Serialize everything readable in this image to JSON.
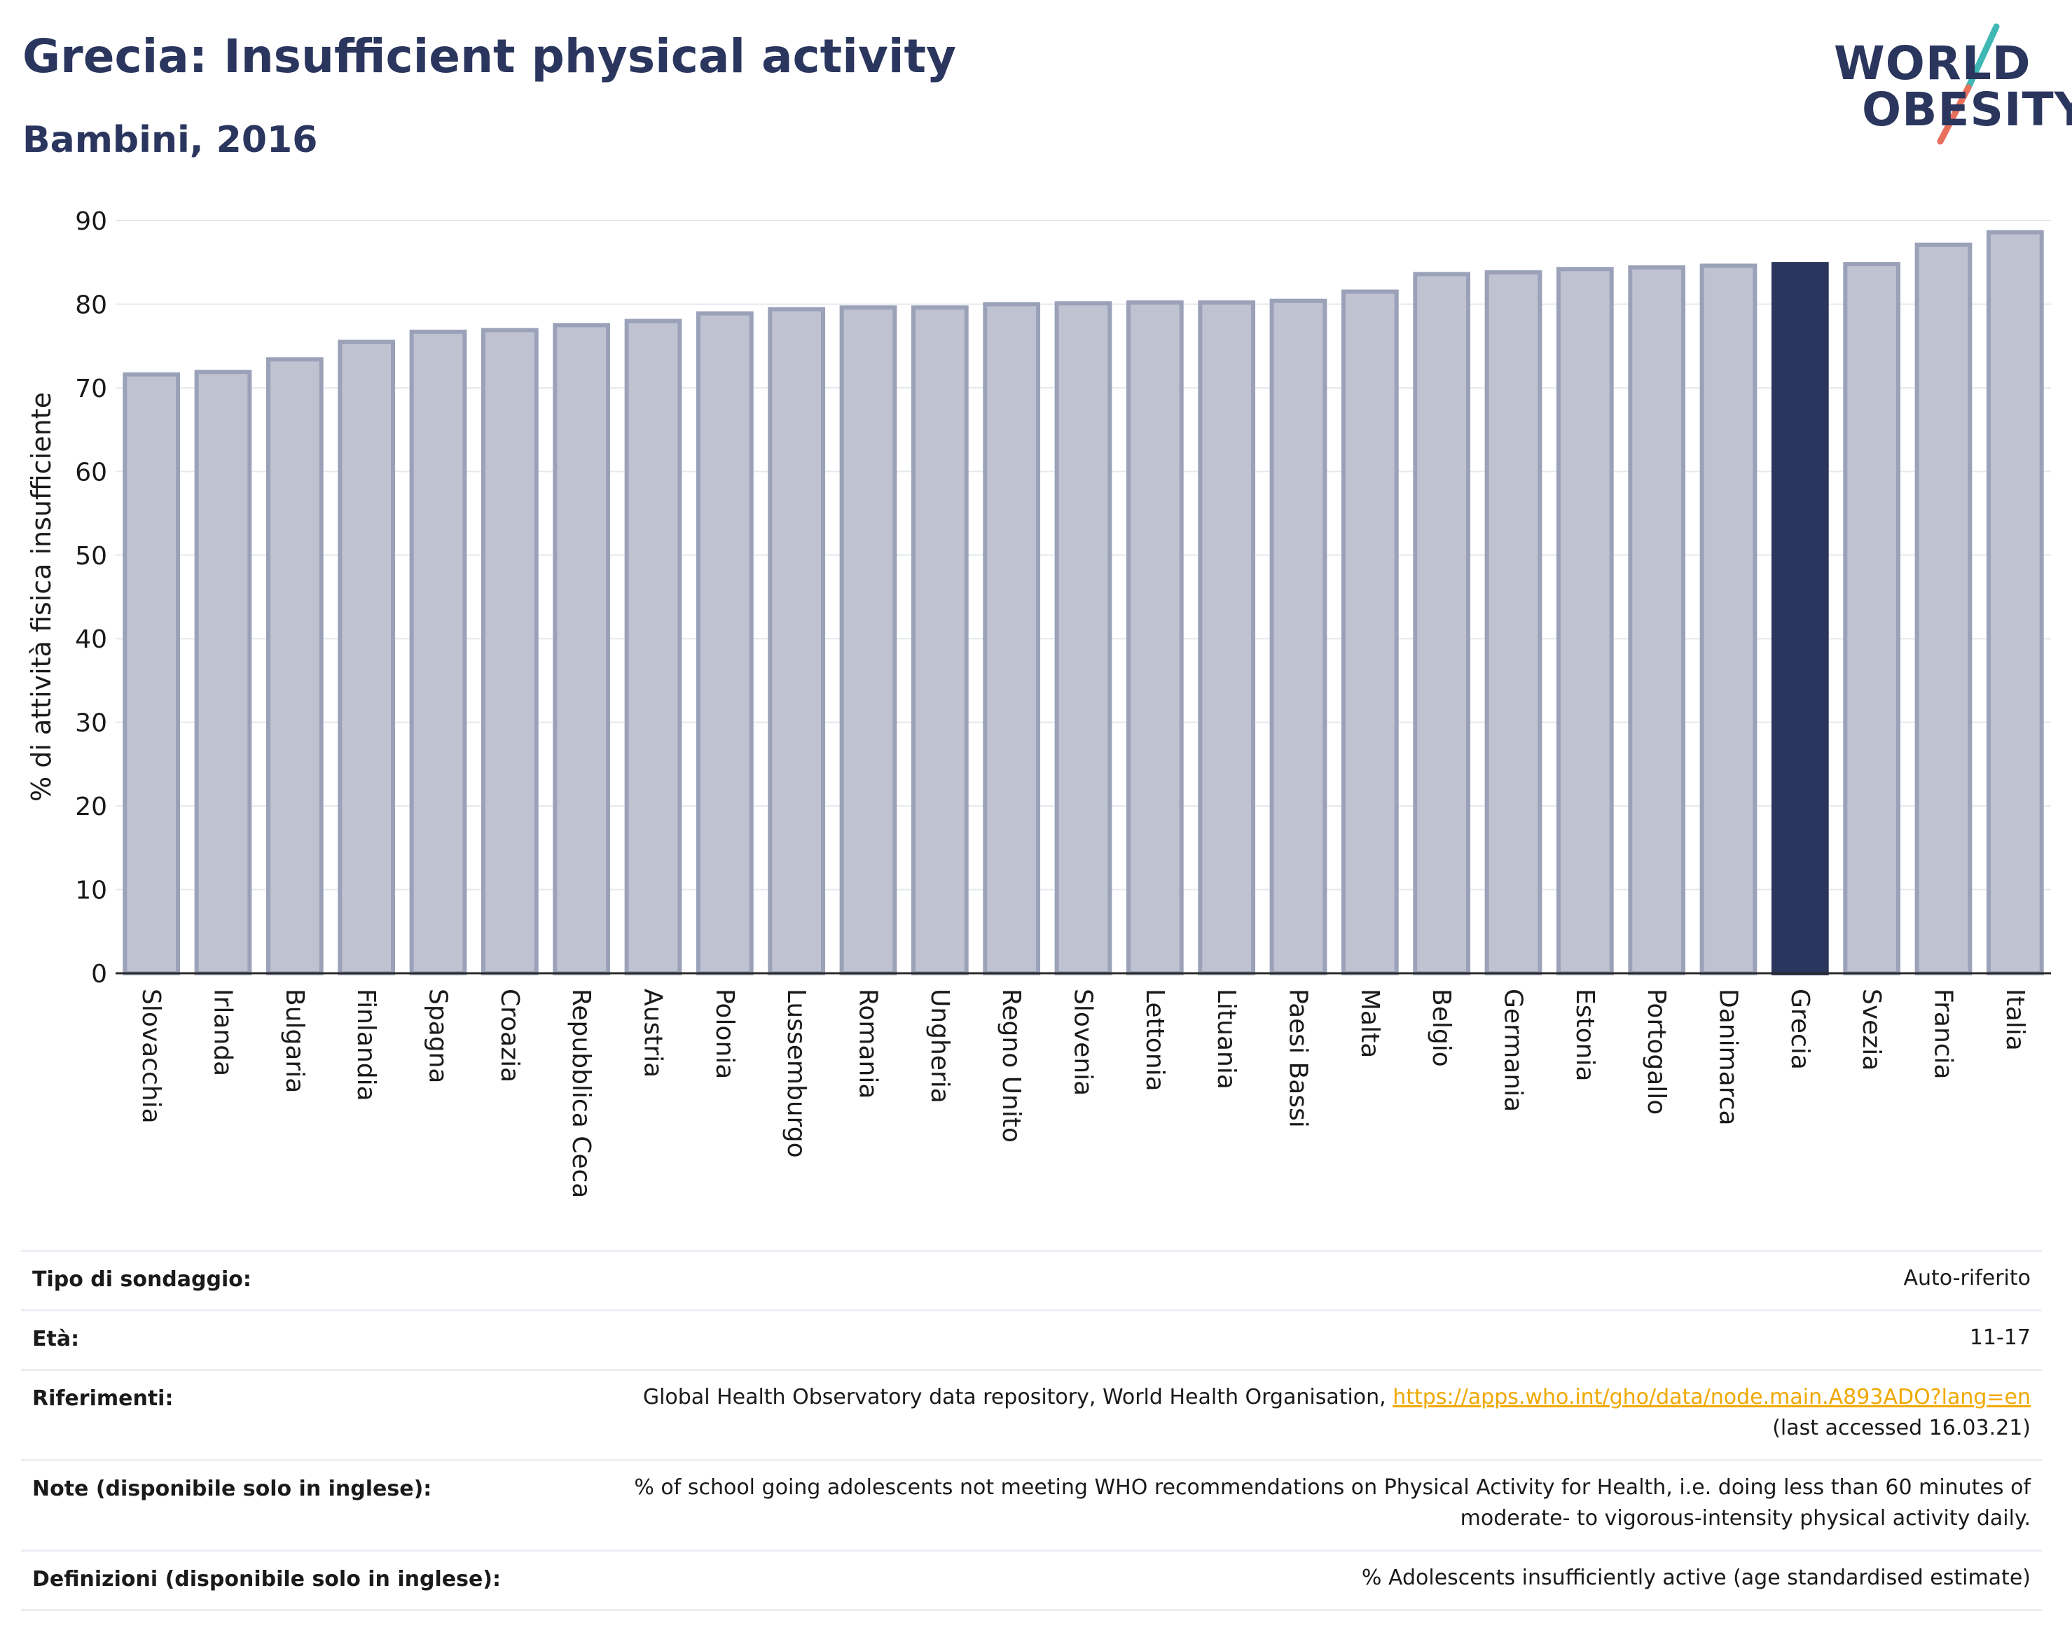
{
  "header": {
    "title": "Grecia: Insufficient physical activity",
    "subtitle": "Bambini, 2016"
  },
  "logo": {
    "line1": "WORLD",
    "line2": "OBESITY"
  },
  "colors": {
    "highlight": "#2b365e",
    "bar_fill": "#bfc3d1",
    "bar_stroke": "#9aa1b8",
    "text": "#1a1a1a"
  },
  "chart_data": {
    "type": "bar",
    "ylabel": "% di attività fisica insufficiente",
    "ylim": [
      0,
      90
    ],
    "yticks": [
      0,
      10,
      20,
      30,
      40,
      50,
      60,
      70,
      80,
      90
    ],
    "grid": true,
    "categories": [
      "Slovacchia",
      "Irlanda",
      "Bulgaria",
      "Finlandia",
      "Spagna",
      "Croazia",
      "Repubblica Ceca",
      "Austria",
      "Polonia",
      "Lussemburgo",
      "Romania",
      "Ungheria",
      "Regno Unito",
      "Slovenia",
      "Lettonia",
      "Lituania",
      "Paesi Bassi",
      "Malta",
      "Belgio",
      "Germania",
      "Estonia",
      "Portogallo",
      "Danimarca",
      "Grecia",
      "Svezia",
      "Francia",
      "Italia"
    ],
    "values": [
      71.6,
      71.9,
      73.4,
      75.5,
      76.7,
      76.9,
      77.5,
      78.0,
      78.9,
      79.4,
      79.6,
      79.6,
      80.0,
      80.1,
      80.2,
      80.2,
      80.4,
      81.5,
      83.6,
      83.8,
      84.2,
      84.4,
      84.6,
      84.8,
      84.8,
      87.1,
      88.6
    ],
    "highlight": "Grecia"
  },
  "info": {
    "rows": [
      {
        "label": "Tipo di sondaggio:",
        "value": "Auto-riferito"
      },
      {
        "label": "Età:",
        "value": "11-17"
      },
      {
        "label": "Riferimenti:",
        "value_before": "Global Health Observatory data repository, World Health Organisation,",
        "link": "https://apps.who.int/gho/data/node.main.A893ADO?lang=en",
        "value_after": "(last accessed 16.03.21)"
      },
      {
        "label": "Note (disponibile solo in inglese):",
        "value_line1": "% of school going adolescents not meeting WHO recommendations on Physical Activity for Health, i.e. doing less than 60 minutes of",
        "value_line2": "moderate- to vigorous-intensity physical activity daily."
      },
      {
        "label": "Definizioni (disponibile solo in inglese):",
        "value": "% Adolescents insufficiently active (age standardised estimate)"
      }
    ]
  }
}
